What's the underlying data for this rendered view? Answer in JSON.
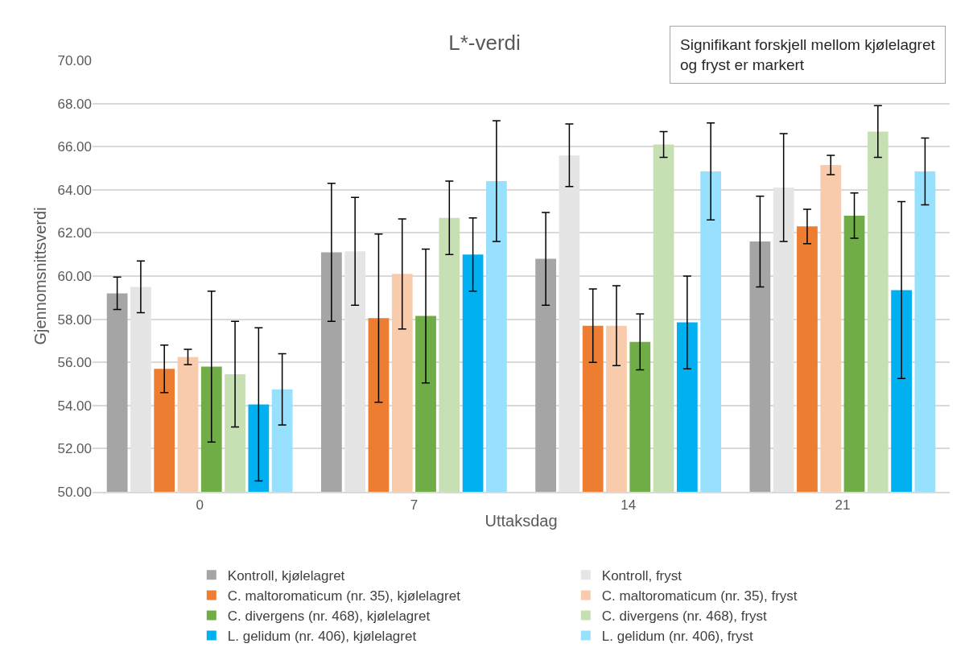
{
  "chart_data": {
    "type": "bar",
    "title": "L*-verdi",
    "xlabel": "Uttaksdag",
    "ylabel": "Gjennomsnittsverdi",
    "categories": [
      "0",
      "7",
      "14",
      "21"
    ],
    "series": [
      {
        "name": "Kontroll, kjølelagret",
        "color": "#a5a5a5",
        "values": [
          59.2,
          61.1,
          60.8,
          61.6
        ],
        "errors": [
          0.75,
          3.2,
          2.15,
          2.1
        ]
      },
      {
        "name": "Kontroll, fryst",
        "color": "#e5e5e5",
        "values": [
          59.5,
          61.15,
          65.6,
          64.1
        ],
        "errors": [
          1.2,
          2.5,
          1.45,
          2.5
        ]
      },
      {
        "name": "C. maltoromaticum (nr. 35), kjølelagret",
        "color": "#ed7d31",
        "values": [
          55.7,
          58.05,
          57.7,
          62.3
        ],
        "errors": [
          1.1,
          3.9,
          1.7,
          0.8
        ]
      },
      {
        "name": "C. maltoromaticum (nr. 35), fryst",
        "color": "#f8cbad",
        "values": [
          56.25,
          60.1,
          57.7,
          65.15
        ],
        "errors": [
          0.35,
          2.55,
          1.85,
          0.45
        ]
      },
      {
        "name": "C. divergens (nr. 468), kjølelagret",
        "color": "#70ad47",
        "values": [
          55.8,
          58.15,
          56.95,
          62.8
        ],
        "errors": [
          3.5,
          3.1,
          1.3,
          1.05
        ]
      },
      {
        "name": "C. divergens (nr. 468), fryst",
        "color": "#c6e0b4",
        "values": [
          55.45,
          62.7,
          66.1,
          66.7
        ],
        "errors": [
          2.45,
          1.7,
          0.6,
          1.2
        ]
      },
      {
        "name": "L. gelidum (nr. 406), kjølelagret",
        "color": "#00b0f0",
        "values": [
          54.05,
          61.0,
          57.85,
          59.35
        ],
        "errors": [
          3.55,
          1.7,
          2.15,
          4.1
        ]
      },
      {
        "name": "L. gelidum (nr. 406), fryst",
        "color": "#97e1ff",
        "values": [
          54.75,
          64.4,
          64.85,
          64.85
        ],
        "errors": [
          1.65,
          2.8,
          2.25,
          1.55
        ]
      }
    ],
    "ylim": [
      50,
      70
    ],
    "yticks": [
      {
        "value": 50,
        "label": "50.00"
      },
      {
        "value": 52,
        "label": "52.00"
      },
      {
        "value": 54,
        "label": "54.00"
      },
      {
        "value": 56,
        "label": "56.00"
      },
      {
        "value": 58,
        "label": "58.00"
      },
      {
        "value": 60,
        "label": "60.00"
      },
      {
        "value": 62,
        "label": "62.00"
      },
      {
        "value": 64,
        "label": "64.00"
      },
      {
        "value": 66,
        "label": "66.00"
      },
      {
        "value": 68,
        "label": "68.00"
      },
      {
        "value": 70,
        "label": "70.00"
      }
    ],
    "grid": "y",
    "legend": "bottom",
    "annotations": [
      "Signifikant forskjell mellom kjølelagret og fryst er markert"
    ]
  }
}
